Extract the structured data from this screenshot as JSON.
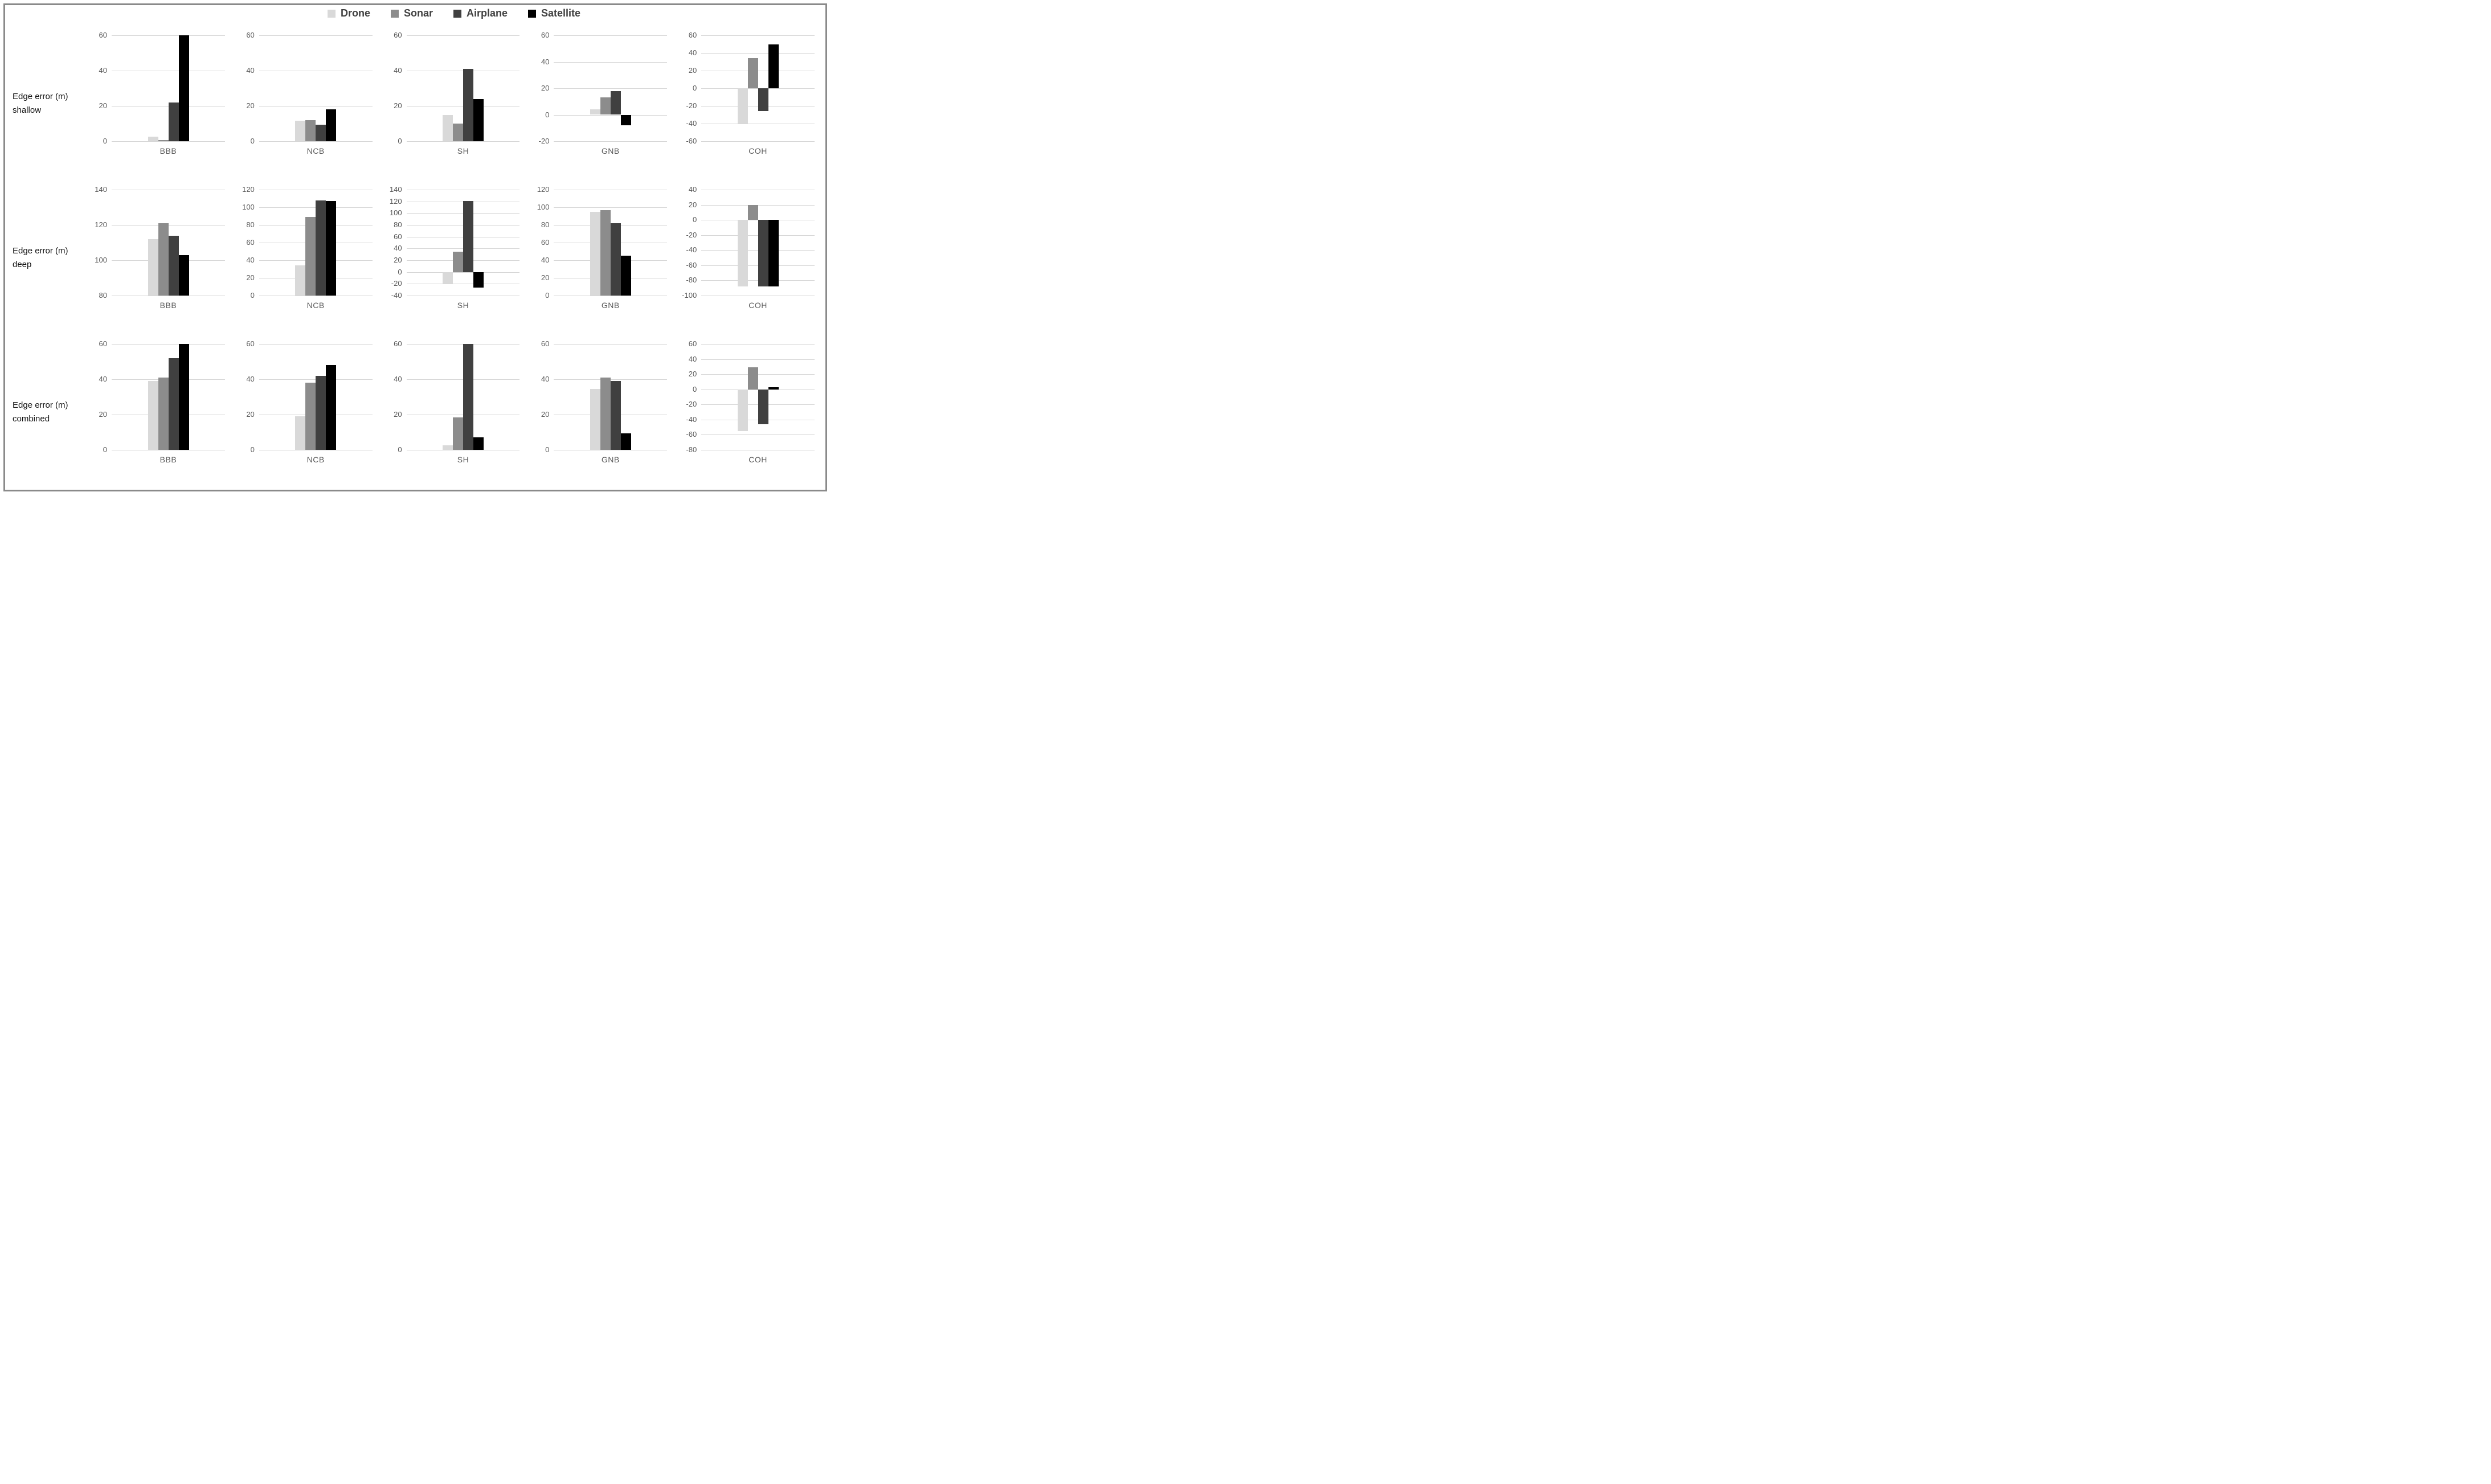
{
  "figure": {
    "legend": [
      {
        "label": "Drone",
        "color": "#d9d9d9"
      },
      {
        "label": "Sonar",
        "color": "#8c8c8c"
      },
      {
        "label": "Airplane",
        "color": "#404040"
      },
      {
        "label": "Satellite",
        "color": "#000000"
      }
    ]
  },
  "chart_data": {
    "type": "bar",
    "title": "",
    "series": [
      "Drone",
      "Sonar",
      "Airplane",
      "Satellite"
    ],
    "series_colors": [
      "#d9d9d9",
      "#8c8c8c",
      "#404040",
      "#000000"
    ],
    "legend_position": "top-center",
    "grid": true,
    "value_unit": "m",
    "rows": [
      {
        "row_label": [
          "Edge error (m)",
          "shallow"
        ],
        "charts": [
          {
            "category": "BBB",
            "ylim": [
              0,
              60
            ],
            "ticks": [
              60,
              40,
              20,
              0
            ],
            "values": [
              2.5,
              0.7,
              22,
              60
            ]
          },
          {
            "category": "NCB",
            "ylim": [
              0,
              60
            ],
            "ticks": [
              60,
              40,
              20,
              0
            ],
            "values": [
              11.5,
              12,
              9.5,
              18
            ]
          },
          {
            "category": "SH",
            "ylim": [
              0,
              60
            ],
            "ticks": [
              60,
              40,
              20,
              0
            ],
            "values": [
              15,
              10,
              41,
              24
            ]
          },
          {
            "category": "GNB",
            "ylim": [
              -20,
              60
            ],
            "ticks": [
              60,
              40,
              20,
              0,
              -20
            ],
            "values": [
              4,
              13,
              18,
              -8
            ]
          },
          {
            "category": "COH",
            "ylim": [
              -60,
              60
            ],
            "ticks": [
              60,
              40,
              20,
              0,
              -20,
              -40,
              -60
            ],
            "values": [
              -40,
              34,
              -26,
              50
            ]
          }
        ]
      },
      {
        "row_label": [
          "Edge error (m)",
          "deep"
        ],
        "charts": [
          {
            "category": "BBB",
            "ylim": [
              80,
              140
            ],
            "ticks": [
              140,
              120,
              100,
              80
            ],
            "values": [
              112,
              121,
              114,
              103
            ]
          },
          {
            "category": "NCB",
            "ylim": [
              0,
              120
            ],
            "ticks": [
              120,
              100,
              80,
              60,
              40,
              20,
              0
            ],
            "values": [
              34,
              89,
              108,
              107
            ]
          },
          {
            "category": "SH",
            "ylim": [
              -40,
              140
            ],
            "ticks": [
              140,
              120,
              100,
              80,
              60,
              40,
              20,
              0,
              -20,
              -40
            ],
            "values": [
              -20,
              35,
              121,
              -26
            ]
          },
          {
            "category": "GNB",
            "ylim": [
              0,
              120
            ],
            "ticks": [
              120,
              100,
              80,
              60,
              40,
              20,
              0
            ],
            "values": [
              95,
              97,
              82,
              45
            ]
          },
          {
            "category": "COH",
            "ylim": [
              -100,
              40
            ],
            "ticks": [
              40,
              20,
              0,
              -20,
              -40,
              -60,
              -80,
              -100
            ],
            "values": [
              -88,
              20,
              -88,
              -88
            ]
          }
        ]
      },
      {
        "row_label": [
          "Edge error (m)",
          "combined"
        ],
        "charts": [
          {
            "category": "BBB",
            "ylim": [
              0,
              60
            ],
            "ticks": [
              60,
              40,
              20,
              0
            ],
            "values": [
              39,
              41,
              52,
              60
            ]
          },
          {
            "category": "NCB",
            "ylim": [
              0,
              60
            ],
            "ticks": [
              60,
              40,
              20,
              0
            ],
            "values": [
              19,
              38,
              42,
              48
            ]
          },
          {
            "category": "SH",
            "ylim": [
              0,
              60
            ],
            "ticks": [
              60,
              40,
              20,
              0
            ],
            "values": [
              2.5,
              18.5,
              60,
              7
            ]
          },
          {
            "category": "GNB",
            "ylim": [
              0,
              60
            ],
            "ticks": [
              60,
              40,
              20,
              0
            ],
            "values": [
              34.5,
              41,
              39,
              9.5
            ]
          },
          {
            "category": "COH",
            "ylim": [
              -80,
              60
            ],
            "ticks": [
              60,
              40,
              20,
              0,
              -20,
              -40,
              -60,
              -80
            ],
            "values": [
              -55,
              29,
              -46,
              3
            ]
          }
        ]
      }
    ]
  },
  "colors": {
    "gridline": "#d6d6d6",
    "tick_text": "#595959",
    "category_text": "#595959",
    "row_label_text": "#111111",
    "legend_text": "#404040",
    "frame": "#8a8a8a",
    "background": "#ffffff"
  }
}
